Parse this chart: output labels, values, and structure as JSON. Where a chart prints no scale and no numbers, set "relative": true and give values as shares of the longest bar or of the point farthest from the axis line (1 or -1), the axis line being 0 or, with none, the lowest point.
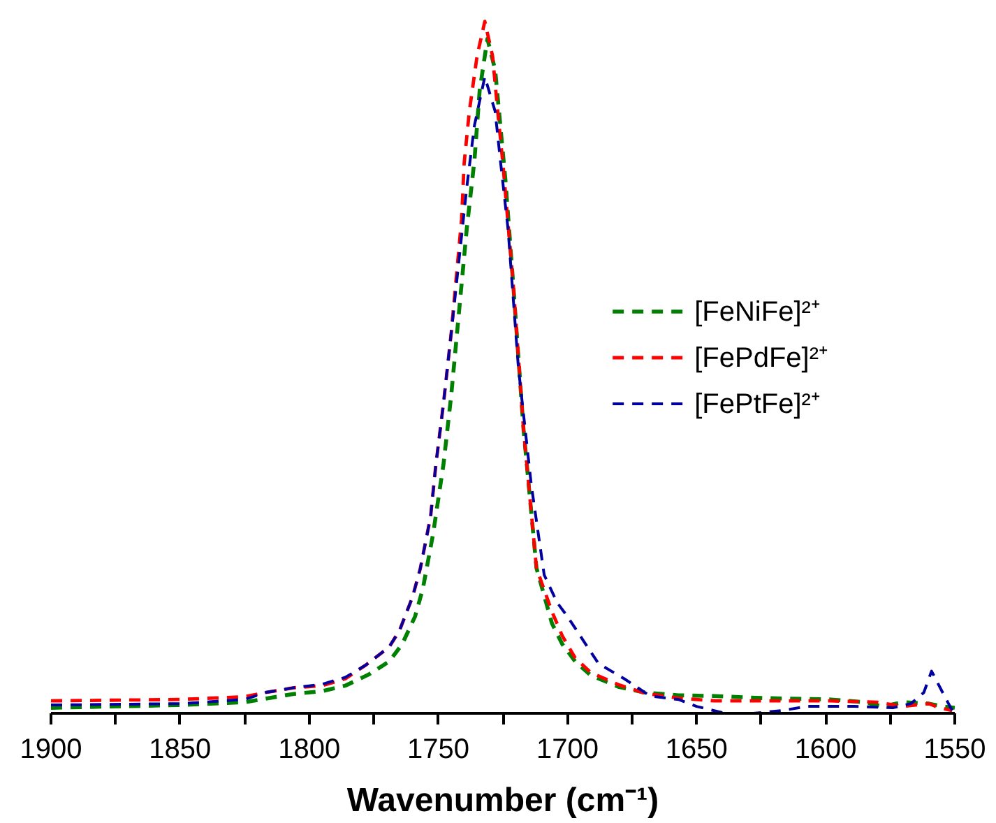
{
  "chart_data": {
    "type": "line",
    "relative": true,
    "xlabel": "Wavenumber (cm⁻¹)",
    "xlim": [
      1900,
      1550
    ],
    "xticks": [
      1900,
      {
        "value": 1875,
        "label": null
      },
      1850,
      {
        "value": 1825,
        "label": null
      },
      1800,
      {
        "value": 1775,
        "label": null
      },
      1750,
      {
        "value": 1725,
        "label": null
      },
      1700,
      {
        "value": 1675,
        "label": null
      },
      1650,
      {
        "value": 1625,
        "label": null
      },
      1600,
      {
        "value": 1575,
        "label": null
      },
      1550
    ],
    "tick_labels": "x",
    "grid": false,
    "legend": "right",
    "line_style": "dashed",
    "marker": "none",
    "series": [
      {
        "name": "[FeNiFe]²⁺",
        "color": "#008000",
        "x": [
          1900,
          1850,
          1825,
          1806,
          1795,
          1786,
          1777,
          1769,
          1764,
          1759,
          1756,
          1752,
          1748,
          1745,
          1743,
          1741,
          1739,
          1736,
          1734,
          1731,
          1728,
          1726,
          1724,
          1721,
          1717,
          1712,
          1706,
          1702,
          1697,
          1691,
          1680,
          1670,
          1657,
          1643,
          1624,
          1598,
          1585,
          1578,
          1570,
          1560,
          1555,
          1550
        ],
        "values": [
          0.008,
          0.012,
          0.016,
          0.028,
          0.032,
          0.04,
          0.056,
          0.075,
          0.1,
          0.14,
          0.18,
          0.26,
          0.36,
          0.46,
          0.54,
          0.62,
          0.7,
          0.8,
          0.9,
          0.975,
          0.93,
          0.85,
          0.77,
          0.62,
          0.41,
          0.21,
          0.13,
          0.1,
          0.075,
          0.055,
          0.038,
          0.03,
          0.026,
          0.025,
          0.022,
          0.02,
          0.016,
          0.01,
          0.016,
          0.014,
          0.01,
          0.008
        ]
      },
      {
        "name": "[FePdFe]²⁺",
        "color": "#ff0000",
        "x": [
          1900,
          1850,
          1825,
          1817,
          1806,
          1795,
          1786,
          1778,
          1769,
          1765,
          1760,
          1757,
          1753,
          1751,
          1748,
          1745,
          1743,
          1741,
          1740,
          1738,
          1735,
          1732,
          1729,
          1727,
          1725,
          1721,
          1717,
          1712,
          1706,
          1702,
          1697,
          1691,
          1680,
          1670,
          1657,
          1643,
          1624,
          1598,
          1580,
          1570,
          1560,
          1556,
          1551
        ],
        "values": [
          0.018,
          0.02,
          0.024,
          0.03,
          0.037,
          0.04,
          0.05,
          0.07,
          0.096,
          0.12,
          0.168,
          0.209,
          0.284,
          0.358,
          0.448,
          0.55,
          0.632,
          0.714,
          0.795,
          0.87,
          0.95,
          1.0,
          0.95,
          0.87,
          0.795,
          0.62,
          0.41,
          0.21,
          0.147,
          0.112,
          0.08,
          0.059,
          0.041,
          0.029,
          0.022,
          0.018,
          0.018,
          0.018,
          0.016,
          0.01,
          0.014,
          0.008,
          0.004
        ]
      },
      {
        "name": "[FePtFe]²⁺",
        "color": "#0000a0",
        "x": [
          1900,
          1850,
          1825,
          1817,
          1806,
          1795,
          1786,
          1778,
          1769,
          1765,
          1760,
          1757,
          1753,
          1751,
          1748,
          1745,
          1743,
          1741,
          1739,
          1736,
          1732,
          1728,
          1726,
          1723,
          1719,
          1714,
          1709,
          1704,
          1700,
          1694,
          1688,
          1678,
          1668,
          1657,
          1650,
          1639,
          1628,
          1617,
          1607,
          1589,
          1574,
          1567,
          1562,
          1559,
          1554,
          1551
        ],
        "values": [
          0.012,
          0.014,
          0.02,
          0.03,
          0.037,
          0.042,
          0.052,
          0.07,
          0.096,
          0.12,
          0.168,
          0.209,
          0.284,
          0.358,
          0.448,
          0.55,
          0.62,
          0.69,
          0.76,
          0.85,
          0.92,
          0.87,
          0.8,
          0.7,
          0.5,
          0.33,
          0.2,
          0.16,
          0.14,
          0.106,
          0.072,
          0.05,
          0.025,
          0.02,
          0.01,
          0.0,
          0.0,
          0.004,
          0.01,
          0.01,
          0.008,
          0.014,
          0.03,
          0.061,
          0.025,
          0.004
        ]
      }
    ]
  }
}
